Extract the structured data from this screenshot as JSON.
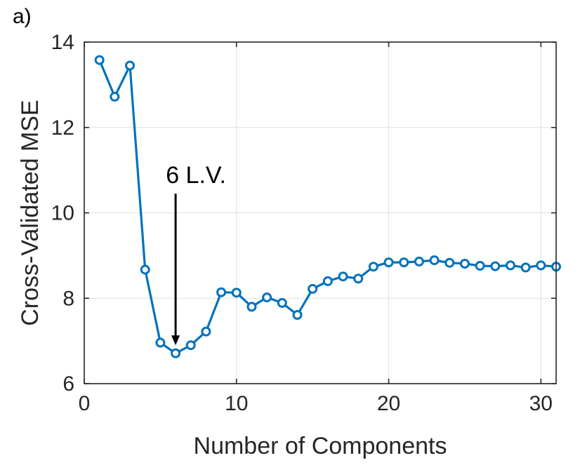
{
  "panel_label": "a)",
  "chart_data": {
    "type": "line",
    "title": "",
    "xlabel": "Number of Components",
    "ylabel": "Cross-Validated MSE",
    "xlim": [
      0,
      31
    ],
    "ylim": [
      6,
      14
    ],
    "xticks": [
      0,
      10,
      20,
      30
    ],
    "yticks": [
      6,
      8,
      10,
      12,
      14
    ],
    "grid": true,
    "series": [
      {
        "color": "#0072BD",
        "marker": "open-circle",
        "x": [
          1,
          2,
          3,
          4,
          5,
          6,
          7,
          8,
          9,
          10,
          11,
          12,
          13,
          14,
          15,
          16,
          17,
          18,
          19,
          20,
          21,
          22,
          23,
          24,
          25,
          26,
          27,
          28,
          29,
          30,
          31
        ],
        "y": [
          13.58,
          12.72,
          13.45,
          8.67,
          6.96,
          6.71,
          6.9,
          7.22,
          8.14,
          8.13,
          7.8,
          8.02,
          7.89,
          7.61,
          8.22,
          8.4,
          8.51,
          8.46,
          8.74,
          8.84,
          8.84,
          8.86,
          8.89,
          8.83,
          8.81,
          8.76,
          8.75,
          8.77,
          8.72,
          8.77,
          8.74
        ]
      }
    ],
    "annotations": [
      {
        "text": "6 L.V.",
        "arrow_from": [
          6,
          10.45
        ],
        "arrow_to": [
          6,
          6.9
        ]
      }
    ]
  }
}
